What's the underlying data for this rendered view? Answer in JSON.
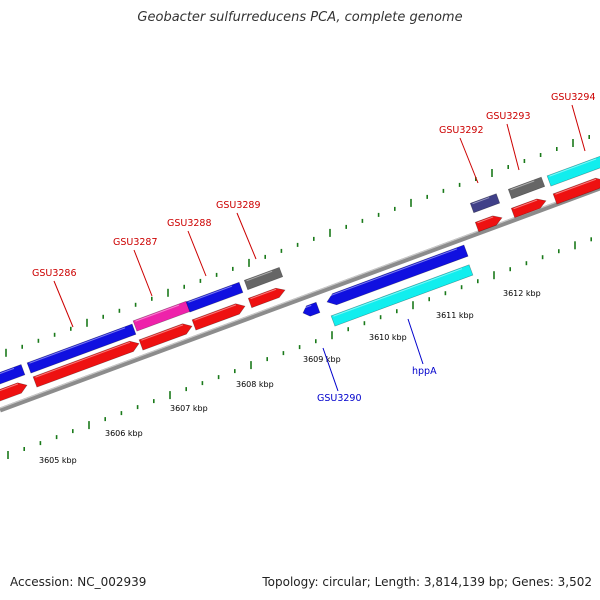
{
  "title": "Geobacter sulfurreducens PCA, complete genome",
  "footer": {
    "accession": "Accession: NC_002939",
    "summary": "Topology: circular; Length: 3,814,139 bp; Genes: 3,502"
  },
  "colors": {
    "backbone": "#8c8c8c",
    "tick": "#1a7a1a",
    "label_forward": "#cc0000",
    "label_reverse": "#0000cc",
    "blue": "#1010e0",
    "red": "#ee1111",
    "cyan": "#11eeee",
    "magenta": "#ee22aa",
    "gray": "#666666",
    "slate": "#404088"
  },
  "scale": {
    "unit": "kbp",
    "labels": [
      "3605 kbp",
      "3606 kbp",
      "3607 kbp",
      "3608 kbp",
      "3609 kbp",
      "3610 kbp",
      "3611 kbp",
      "3612 kbp"
    ]
  },
  "gene_labels": {
    "forward": [
      "GSU3286",
      "GSU3287",
      "GSU3288",
      "GSU3289",
      "GSU3292",
      "GSU3293",
      "GSU3294"
    ],
    "reverse": [
      "GSU3290",
      "hppA"
    ]
  }
}
